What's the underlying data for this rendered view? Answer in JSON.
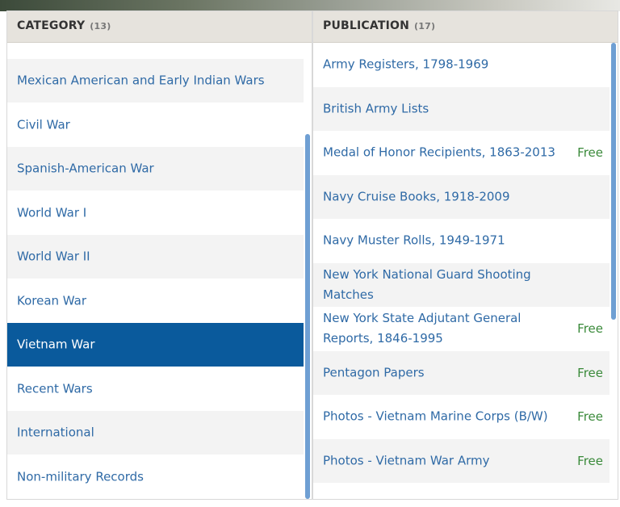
{
  "category": {
    "title": "CATEGORY",
    "count": "(13)",
    "selected": 6,
    "items": [
      "Mexican American and Early Indian Wars",
      "Civil War",
      "Spanish-American War",
      "World War I",
      "World War II",
      "Korean War",
      "Vietnam War",
      "Recent Wars",
      "International",
      "Non-military Records"
    ]
  },
  "publication": {
    "title": "PUBLICATION",
    "count": "(17)",
    "items": [
      {
        "name": "Army Registers, 1798-1969"
      },
      {
        "name": "British Army Lists"
      },
      {
        "name": "Medal of Honor Recipients, 1863-2013",
        "badge": "Free"
      },
      {
        "name": "Navy Cruise Books, 1918-2009"
      },
      {
        "name": "Navy Muster Rolls, 1949-1971"
      },
      {
        "name": "New York National Guard Shooting Matches"
      },
      {
        "name": "New York State Adjutant General Reports, 1846-1995",
        "badge": "Free"
      },
      {
        "name": "Pentagon Papers",
        "badge": "Free"
      },
      {
        "name": "Photos - Vietnam Marine Corps (B/W)",
        "badge": "Free"
      },
      {
        "name": "Photos - Vietnam War Army",
        "badge": "Free"
      }
    ]
  }
}
